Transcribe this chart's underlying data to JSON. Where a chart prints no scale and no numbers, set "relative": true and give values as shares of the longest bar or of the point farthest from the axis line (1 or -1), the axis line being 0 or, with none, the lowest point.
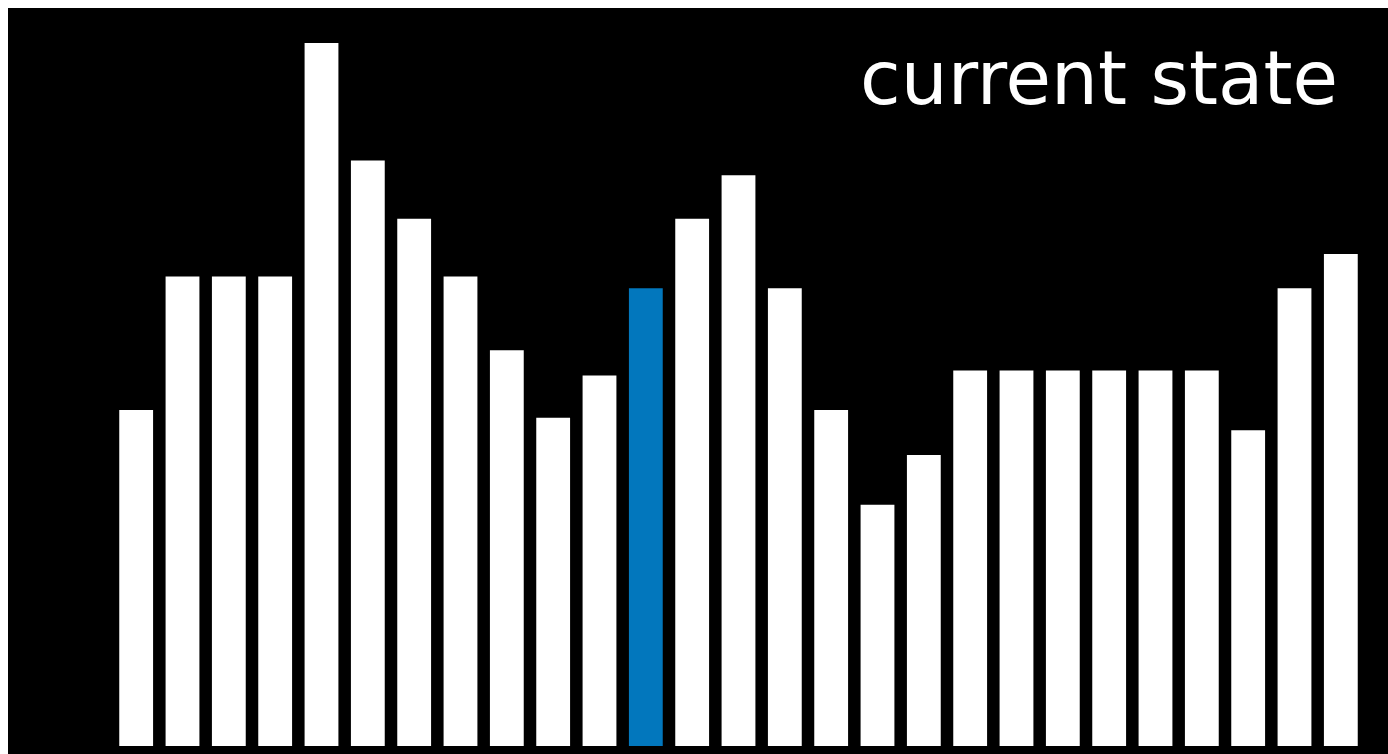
{
  "chart_data": {
    "type": "bar",
    "title": "current state",
    "relative": true,
    "categories": [
      null,
      null,
      null,
      null,
      null,
      null,
      null,
      null,
      null,
      null,
      null,
      null,
      null,
      null,
      null,
      null,
      null,
      null,
      null,
      null,
      null,
      null,
      null,
      null,
      null,
      null,
      null
    ],
    "values": [
      0.478,
      0.668,
      0.668,
      0.668,
      1,
      0.833,
      0.75,
      0.668,
      0.563,
      0.467,
      0.527,
      0.651,
      0.75,
      0.812,
      0.651,
      0.478,
      0.343,
      0.414,
      0.534,
      0.534,
      0.534,
      0.534,
      0.534,
      0.534,
      0.449,
      0.651,
      0.7
    ],
    "colors": [
      "#ffffff",
      "#ffffff",
      "#ffffff",
      "#ffffff",
      "#ffffff",
      "#ffffff",
      "#ffffff",
      "#ffffff",
      "#ffffff",
      "#ffffff",
      "#ffffff",
      "#0277bd",
      "#ffffff",
      "#ffffff",
      "#ffffff",
      "#ffffff",
      "#ffffff",
      "#ffffff",
      "#ffffff",
      "#ffffff",
      "#ffffff",
      "#ffffff",
      "#ffffff",
      "#ffffff",
      "#ffffff",
      "#ffffff",
      "#ffffff"
    ],
    "orientation": "vertical"
  }
}
